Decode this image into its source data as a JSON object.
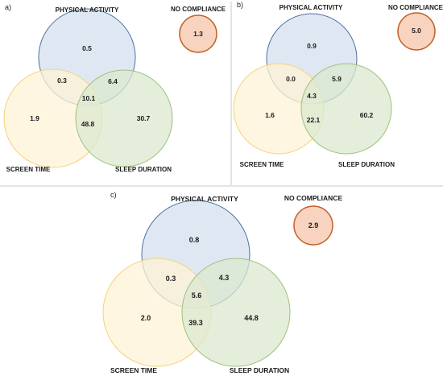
{
  "colors": {
    "physical_fill": "#dbe5f1",
    "physical_stroke": "#4f6fa0",
    "screen_fill": "#fdf3d6",
    "screen_stroke": "#f3d37a",
    "sleep_fill": "#dbe8cf",
    "sleep_stroke": "#9cc27c",
    "overlap_ps": "#e9e7dc",
    "overlap_pl": "#c9dccd",
    "overlap_sl": "#e6ecc9",
    "overlap_all": "#d8dcc9",
    "nocomp_fill": "#f8d3c0",
    "nocomp_stroke": "#c0612a"
  },
  "labels": {
    "physical": "PHYSICAL ACTIVITY",
    "screen": "SCREEN TIME",
    "sleep": "SLEEP DURATION",
    "nocomp": "NO COMPLIANCE"
  },
  "panels": [
    {
      "letter": "a)",
      "values": {
        "physical_only": "0.5",
        "physical_screen": "0.3",
        "physical_sleep": "6.4",
        "all": "10.1",
        "screen_only": "1.9",
        "screen_sleep": "48.8",
        "sleep_only": "30.7",
        "nocomp": "1.3"
      }
    },
    {
      "letter": "b)",
      "values": {
        "physical_only": "0.9",
        "physical_screen": "0.0",
        "physical_sleep": "5.9",
        "all": "4.3",
        "screen_only": "1.6",
        "screen_sleep": "22.1",
        "sleep_only": "60.2",
        "nocomp": "5.0"
      }
    },
    {
      "letter": "c)",
      "values": {
        "physical_only": "0.8",
        "physical_screen": "0.3",
        "physical_sleep": "4.3",
        "all": "5.6",
        "screen_only": "2.0",
        "screen_sleep": "39.3",
        "sleep_only": "44.8",
        "nocomp": "2.9"
      }
    }
  ]
}
